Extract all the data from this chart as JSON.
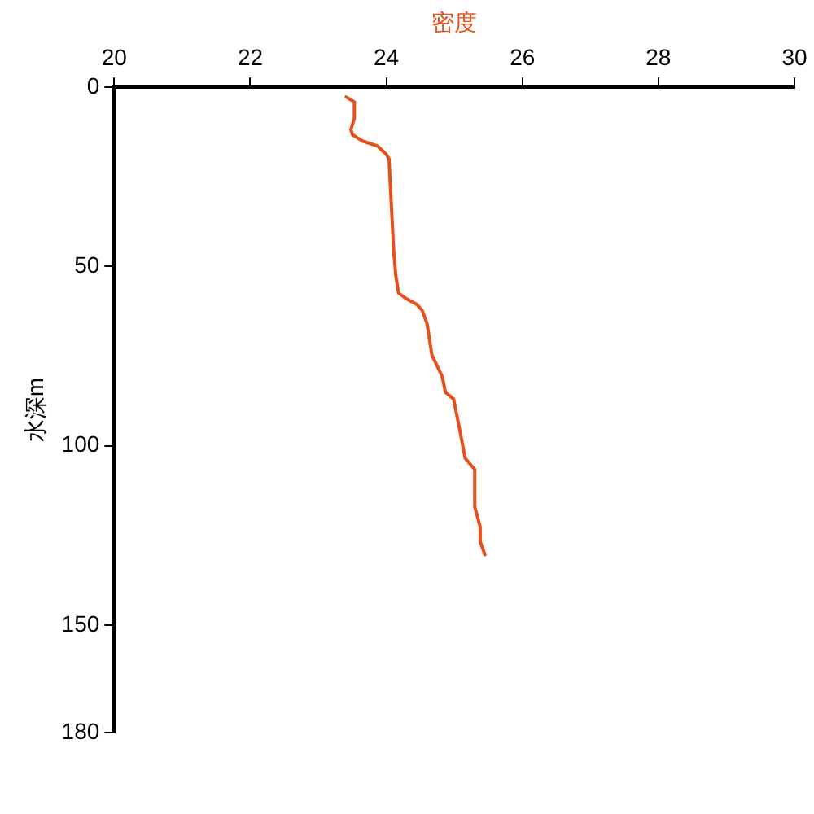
{
  "chart_data": {
    "type": "line",
    "xlabel": "密度",
    "ylabel": "水深m",
    "xlim": [
      20,
      30
    ],
    "xticks": [
      20,
      22,
      24,
      26,
      28,
      30
    ],
    "ylim": [
      180,
      0
    ],
    "yticks": [
      0,
      50,
      100,
      150,
      180
    ],
    "grid": false,
    "legend": false,
    "marker": "none",
    "line_style": "solid",
    "series": [
      {
        "color": "#e8501a",
        "x": [
          23.41,
          23.53,
          23.53,
          23.48,
          23.5,
          23.65,
          23.87,
          24.0,
          24.04,
          24.06,
          24.11,
          24.14,
          24.18,
          24.28,
          24.45,
          24.53,
          24.6,
          24.67,
          24.82,
          24.87,
          24.99,
          25.09,
          25.16,
          25.3,
          25.3,
          25.38,
          25.38,
          25.45
        ],
        "values": [
          2.7,
          4.1,
          8.7,
          11.8,
          13.2,
          15,
          16.4,
          18.7,
          20,
          27.8,
          46,
          52.6,
          57.4,
          58.8,
          60.6,
          62.3,
          66,
          74.7,
          80.6,
          85.1,
          87,
          96.6,
          103.5,
          106.6,
          117,
          122.6,
          126.7,
          130.4
        ]
      }
    ]
  }
}
